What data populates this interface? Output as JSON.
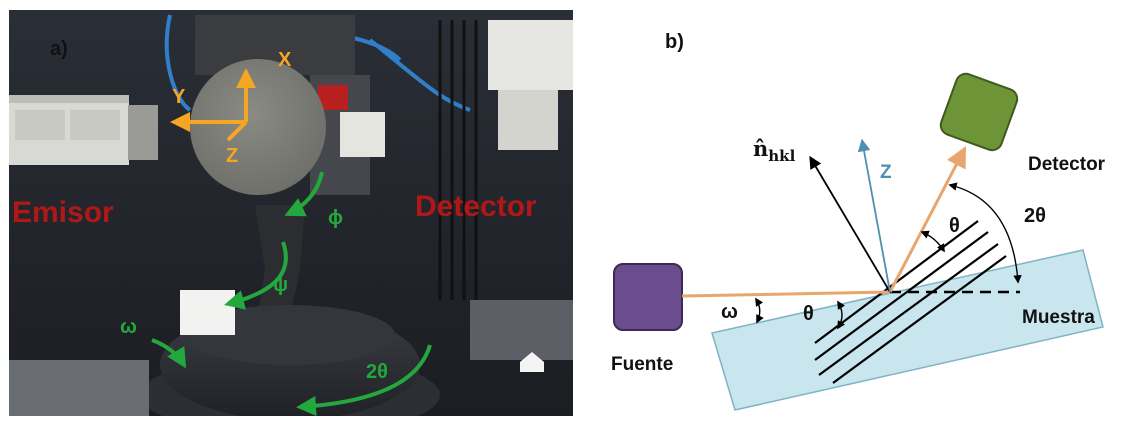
{
  "panel_a": {
    "label": "a)",
    "axes": {
      "x": "X",
      "y": "Y",
      "z": "Z"
    },
    "source_label": "Emisor",
    "detector_label": "Detector",
    "angles": {
      "phi": "ϕ",
      "psi": "ψ",
      "omega": "ω",
      "two_theta": "2θ"
    },
    "colors": {
      "axes": "#F5A623",
      "angle_arrows": "#22A83C",
      "labels": "#B01818"
    }
  },
  "panel_b": {
    "label": "b)",
    "source_label": "Fuente",
    "detector_label": "Detector",
    "sample_label": "Muestra",
    "normal_label": "n̂",
    "normal_subscript": "hkl",
    "z_label": "Z",
    "theta_label": "θ",
    "two_theta_label": "2θ",
    "omega_label": "ω",
    "colors": {
      "source": "#6B4C8C",
      "detector": "#6E9438",
      "sample": "#C9E6EE",
      "beam": "#E8A66E",
      "z_axis": "#4F8FB0"
    }
  }
}
